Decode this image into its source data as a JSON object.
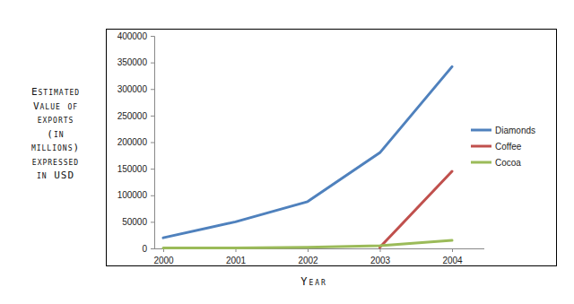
{
  "chart_data": {
    "type": "line",
    "y_label": "Estimated Value of exports (in millions) expressed in USD",
    "x_label": "Year",
    "categories": [
      "2000",
      "2001",
      "2002",
      "2003",
      "2004"
    ],
    "series": [
      {
        "name": "Diamonds",
        "color": "#4f81bd",
        "values": [
          20000,
          50000,
          88000,
          180000,
          342000
        ]
      },
      {
        "name": "Coffee",
        "color": "#c0504d",
        "values": [
          null,
          null,
          null,
          2000,
          145000
        ]
      },
      {
        "name": "Cocoa",
        "color": "#9bbb59",
        "values": [
          1000,
          1000,
          2000,
          5000,
          15000
        ]
      }
    ],
    "ylim": [
      0,
      400000
    ],
    "yticks": [
      0,
      50000,
      100000,
      150000,
      200000,
      250000,
      300000,
      350000,
      400000
    ],
    "legend": "right",
    "grid": false
  }
}
